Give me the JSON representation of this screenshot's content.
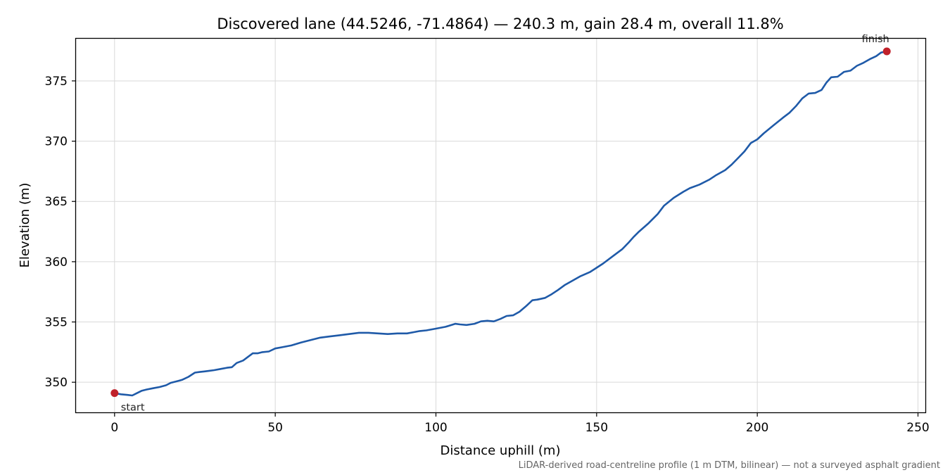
{
  "chart_data": {
    "type": "line",
    "title": "Discovered lane (44.5246, -71.4864) — 240.3 m, gain 28.4 m, overall 11.8%",
    "xlabel": "Distance uphill (m)",
    "ylabel": "Elevation (m)",
    "footnote": "LiDAR-derived road-centreline profile (1 m DTM, bilinear) — not a surveyed asphalt gradient",
    "xlim": [
      -12,
      252.3
    ],
    "ylim": [
      347.5,
      378.5
    ],
    "x_ticks": [
      0,
      50,
      100,
      150,
      200,
      250
    ],
    "y_ticks": [
      350,
      355,
      360,
      365,
      370,
      375
    ],
    "grid": true,
    "series": [
      {
        "color": "#1f5aa8",
        "x": [
          0,
          2,
          4,
          5.5,
          7,
          8.5,
          10,
          12,
          14,
          16,
          17.5,
          19,
          21,
          23,
          25,
          26.5,
          28,
          29.5,
          31,
          33,
          35,
          36.5,
          38,
          40,
          41.5,
          43,
          44.5,
          46,
          48,
          50,
          52,
          55,
          58,
          61,
          64,
          67,
          70,
          73,
          76,
          79,
          82,
          85,
          88,
          91,
          93,
          95,
          97,
          100,
          103,
          106,
          107.5,
          109.5,
          112,
          114,
          116,
          118,
          120,
          122,
          124,
          126,
          128,
          130,
          131.5,
          134,
          136,
          138,
          140,
          142,
          145,
          148,
          150,
          152,
          155,
          158,
          160,
          161.5,
          163,
          166,
          169,
          171,
          174,
          177,
          179,
          182,
          185,
          187,
          190,
          192,
          194,
          196,
          198,
          200,
          202,
          205,
          208,
          210,
          212,
          214,
          216,
          218,
          220,
          221.5,
          223,
          225,
          227,
          229,
          231,
          233,
          235,
          237,
          238.5,
          240.3
        ],
        "y": [
          349.1,
          349.0,
          348.95,
          348.9,
          349.1,
          349.3,
          349.4,
          349.5,
          349.6,
          349.75,
          349.95,
          350.05,
          350.2,
          350.45,
          350.8,
          350.85,
          350.9,
          350.95,
          351.0,
          351.1,
          351.2,
          351.25,
          351.6,
          351.8,
          352.1,
          352.4,
          352.4,
          352.5,
          352.55,
          352.8,
          352.9,
          353.05,
          353.3,
          353.5,
          353.7,
          353.8,
          353.9,
          354.0,
          354.1,
          354.1,
          354.05,
          354.0,
          354.05,
          354.05,
          354.15,
          354.25,
          354.3,
          354.45,
          354.6,
          354.85,
          354.8,
          354.75,
          354.85,
          355.05,
          355.1,
          355.05,
          355.25,
          355.5,
          355.55,
          355.85,
          356.3,
          356.8,
          356.85,
          357.0,
          357.3,
          357.65,
          358.05,
          358.35,
          358.8,
          359.15,
          359.5,
          359.85,
          360.45,
          361.05,
          361.6,
          362.05,
          362.45,
          363.15,
          363.95,
          364.65,
          365.3,
          365.8,
          366.1,
          366.4,
          366.8,
          367.15,
          367.6,
          368.05,
          368.6,
          369.15,
          369.85,
          370.15,
          370.65,
          371.3,
          371.95,
          372.35,
          372.9,
          373.55,
          373.95,
          374.0,
          374.25,
          374.85,
          375.3,
          375.35,
          375.75,
          375.85,
          376.25,
          376.5,
          376.8,
          377.05,
          377.35,
          377.45
        ]
      }
    ],
    "markers": [
      {
        "x": 0,
        "y": 349.1,
        "label": "start",
        "color": "#c0212a"
      },
      {
        "x": 240.3,
        "y": 377.45,
        "label": "finish",
        "color": "#c0212a"
      }
    ]
  }
}
